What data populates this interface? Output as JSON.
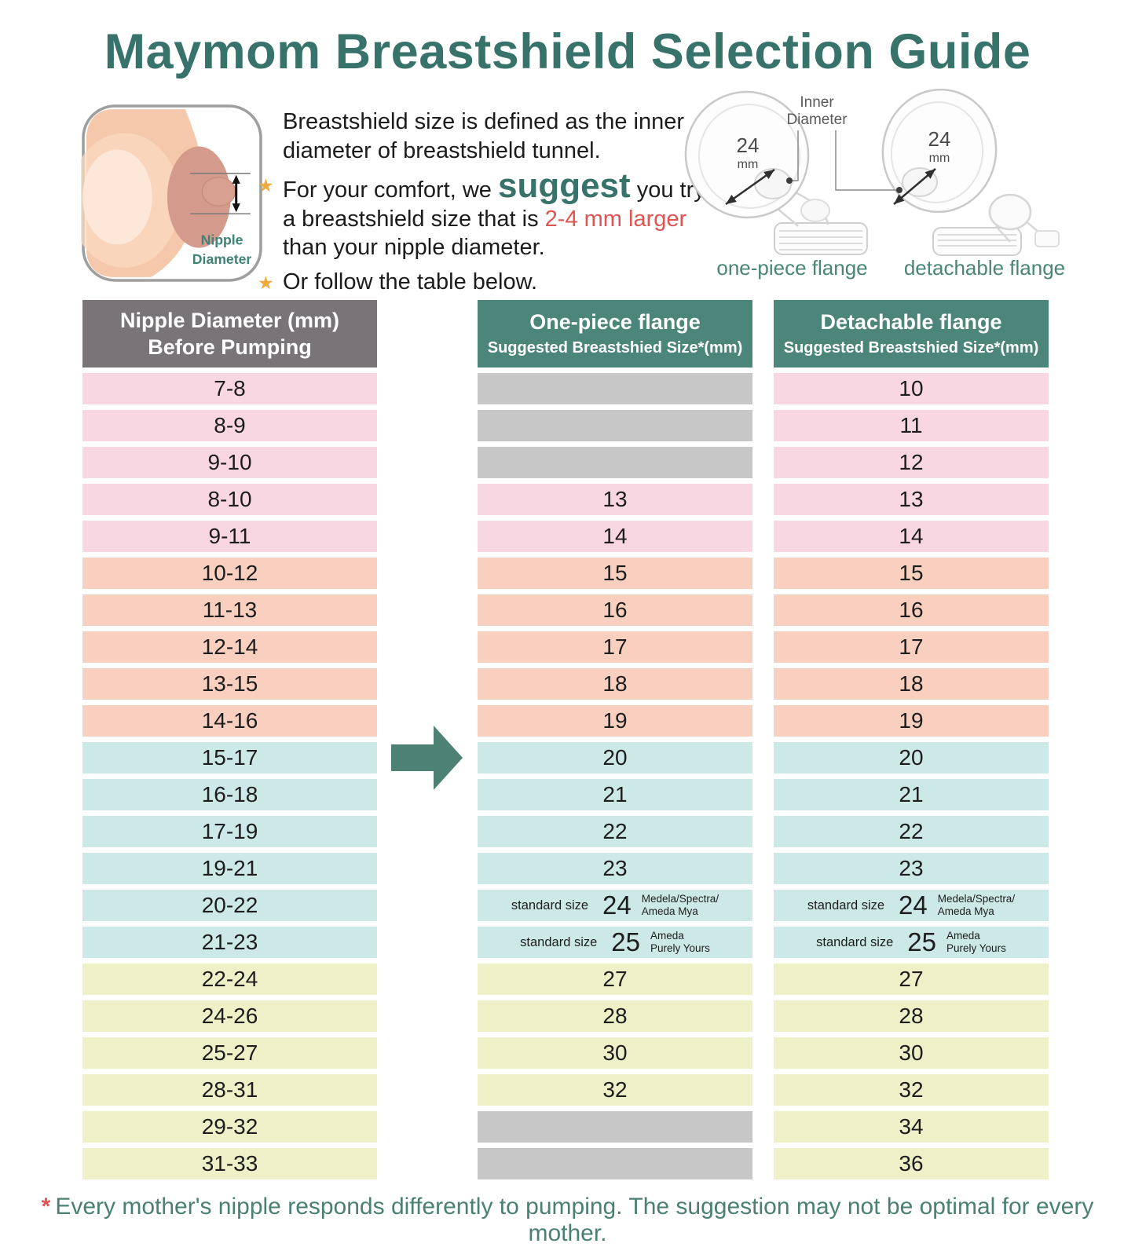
{
  "title": "Maymom Breastshield Selection Guide",
  "nipple_diagram": {
    "label_line1": "Nipple",
    "label_line2": "Diameter"
  },
  "intro": {
    "sentence1": "Breastshield size is defined as the inner diameter of breastshield tunnel.",
    "bullet1_pre": "For your comfort, we ",
    "bullet1_suggest": "suggest",
    "bullet1_mid": " you try a breastshield size that is ",
    "bullet1_red": "2-4 mm larger",
    "bullet1_post": " than your nipple diameter.",
    "bullet2": "Or follow the table below.",
    "star_icon": "★"
  },
  "flanges": {
    "inner_diameter_line1": "Inner",
    "inner_diameter_line2": "Diameter",
    "items": [
      {
        "size": "24",
        "unit": "mm",
        "label": "one-piece flange"
      },
      {
        "size": "24",
        "unit": "mm",
        "label": "detachable flange"
      }
    ]
  },
  "table": {
    "columns": [
      {
        "title": "Nipple Diameter (mm)",
        "subtitle": "Before Pumping"
      },
      {
        "title": "One-piece flange",
        "subtitle": "Suggested Breastshied Size*(mm)"
      },
      {
        "title": "Detachable flange",
        "subtitle": "Suggested Breastshied Size*(mm)"
      }
    ],
    "rows": [
      {
        "tone": "pink",
        "nipple": "7-8",
        "one_piece": null,
        "detachable": "10"
      },
      {
        "tone": "pink",
        "nipple": "8-9",
        "one_piece": null,
        "detachable": "11"
      },
      {
        "tone": "pink",
        "nipple": "9-10",
        "one_piece": null,
        "detachable": "12"
      },
      {
        "tone": "pink",
        "nipple": "8-10",
        "one_piece": "13",
        "detachable": "13"
      },
      {
        "tone": "pink",
        "nipple": "9-11",
        "one_piece": "14",
        "detachable": "14"
      },
      {
        "tone": "salmon",
        "nipple": "10-12",
        "one_piece": "15",
        "detachable": "15"
      },
      {
        "tone": "salmon",
        "nipple": "11-13",
        "one_piece": "16",
        "detachable": "16"
      },
      {
        "tone": "salmon",
        "nipple": "12-14",
        "one_piece": "17",
        "detachable": "17"
      },
      {
        "tone": "salmon",
        "nipple": "13-15",
        "one_piece": "18",
        "detachable": "18"
      },
      {
        "tone": "salmon",
        "nipple": "14-16",
        "one_piece": "19",
        "detachable": "19"
      },
      {
        "tone": "blue",
        "nipple": "15-17",
        "one_piece": "20",
        "detachable": "20",
        "arrow": true
      },
      {
        "tone": "blue",
        "nipple": "16-18",
        "one_piece": "21",
        "detachable": "21"
      },
      {
        "tone": "blue",
        "nipple": "17-19",
        "one_piece": "22",
        "detachable": "22"
      },
      {
        "tone": "blue",
        "nipple": "19-21",
        "one_piece": "23",
        "detachable": "23"
      },
      {
        "tone": "blue",
        "nipple": "20-22",
        "one_piece": {
          "prefix": "standard size",
          "value": "24",
          "note": [
            "Medela/Spectra/",
            "Ameda Mya"
          ]
        },
        "detachable": {
          "prefix": "standard size",
          "value": "24",
          "note": [
            "Medela/Spectra/",
            "Ameda Mya"
          ]
        }
      },
      {
        "tone": "blue",
        "nipple": "21-23",
        "one_piece": {
          "prefix": "standard size",
          "value": "25",
          "note": [
            "Ameda",
            "Purely Yours"
          ]
        },
        "detachable": {
          "prefix": "standard size",
          "value": "25",
          "note": [
            "Ameda",
            "Purely Yours"
          ]
        }
      },
      {
        "tone": "yellow",
        "nipple": "22-24",
        "one_piece": "27",
        "detachable": "27"
      },
      {
        "tone": "yellow",
        "nipple": "24-26",
        "one_piece": "28",
        "detachable": "28"
      },
      {
        "tone": "yellow",
        "nipple": "25-27",
        "one_piece": "30",
        "detachable": "30"
      },
      {
        "tone": "yellow",
        "nipple": "28-31",
        "one_piece": "32",
        "detachable": "32"
      },
      {
        "tone": "yellow",
        "nipple": "29-32",
        "one_piece": null,
        "detachable": "34"
      },
      {
        "tone": "yellow",
        "nipple": "31-33",
        "one_piece": null,
        "detachable": "36"
      }
    ]
  },
  "footnote": {
    "asterisk": "*",
    "text": "Every mother's nipple responds differently to pumping. The suggestion may not be optimal for every mother."
  },
  "colors": {
    "accent_teal": "#37726b",
    "header_teal": "#4c867a",
    "header_gray": "#787478",
    "row_pink": "#f8d7e3",
    "row_salmon": "#f9cfc0",
    "row_blue": "#cde9e7",
    "row_yellow": "#eef0c8",
    "empty_gray": "#c7c7c7",
    "highlight_red": "#e05454",
    "star_orange": "#f2a93b",
    "arrow_teal": "#4c8173"
  }
}
